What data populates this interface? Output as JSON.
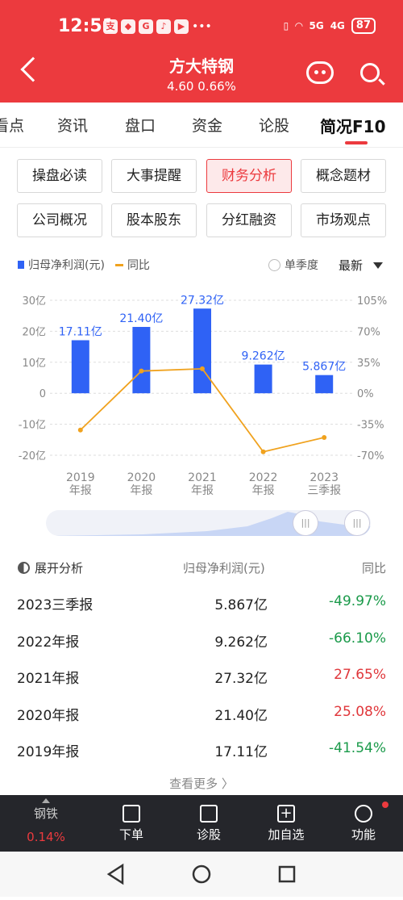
{
  "status_bar": {
    "time": "12:51",
    "battery": "87",
    "net1": "5G",
    "net2": "4G"
  },
  "header": {
    "title": "方大特钢",
    "price": "4.60",
    "change": "0.66%"
  },
  "tabs": [
    "看点",
    "资讯",
    "盘口",
    "资金",
    "论股",
    "简况F10"
  ],
  "buttons": [
    "操盘必读",
    "大事提醒",
    "财务分析",
    "概念题材",
    "公司概况",
    "股本股东",
    "分红融资",
    "市场观点"
  ],
  "legend": {
    "bar": "归母净利润(元)",
    "line": "同比",
    "toggle": "单季度",
    "sort": "最新"
  },
  "chart_data": {
    "type": "bar",
    "categories": [
      "2019 年报",
      "2020 年报",
      "2021 年报",
      "2022 年报",
      "2023 三季报"
    ],
    "cat_line1": [
      "2019",
      "2020",
      "2021",
      "2022",
      "2023"
    ],
    "cat_line2": [
      "年报",
      "年报",
      "年报",
      "年报",
      "三季报"
    ],
    "series": [
      {
        "name": "归母净利润(元)",
        "values": [
          17.11,
          21.4,
          27.32,
          9.262,
          5.867
        ],
        "labels": [
          "17.11亿",
          "21.40亿",
          "27.32亿",
          "9.262亿",
          "5.867亿"
        ],
        "color": "#2f62f5"
      },
      {
        "name": "同比",
        "values": [
          -41.54,
          25.08,
          27.65,
          -66.1,
          -49.97
        ],
        "color": "#f0a21e"
      }
    ],
    "left_ticks": [
      "30亿",
      "20亿",
      "10亿",
      "0",
      "-10亿",
      "-20亿"
    ],
    "right_ticks": [
      "105%",
      "70%",
      "35%",
      "0%",
      "-35%",
      "-70%"
    ],
    "ylim_left": [
      -20,
      30
    ],
    "ylim_right": [
      -70,
      105
    ]
  },
  "table": {
    "header": {
      "name": "展开分析",
      "col1": "归母净利润(元)",
      "col2": "同比"
    },
    "rows": [
      {
        "period": "2023三季报",
        "value": "5.867亿",
        "yoy": "-49.97%",
        "color": "#1a9a4a"
      },
      {
        "period": "2022年报",
        "value": "9.262亿",
        "yoy": "-66.10%",
        "color": "#1a9a4a"
      },
      {
        "period": "2021年报",
        "value": "27.32亿",
        "yoy": "27.65%",
        "color": "#e0363a"
      },
      {
        "period": "2020年报",
        "value": "21.40亿",
        "yoy": "25.08%",
        "color": "#e0363a"
      },
      {
        "period": "2019年报",
        "value": "17.11亿",
        "yoy": "-41.54%",
        "color": "#1a9a4a"
      }
    ],
    "more": "查看更多 〉"
  },
  "bottom": {
    "sector": "钢铁",
    "sector_change": "0.14%",
    "items": [
      "下单",
      "诊股",
      "加自选",
      "功能"
    ]
  }
}
